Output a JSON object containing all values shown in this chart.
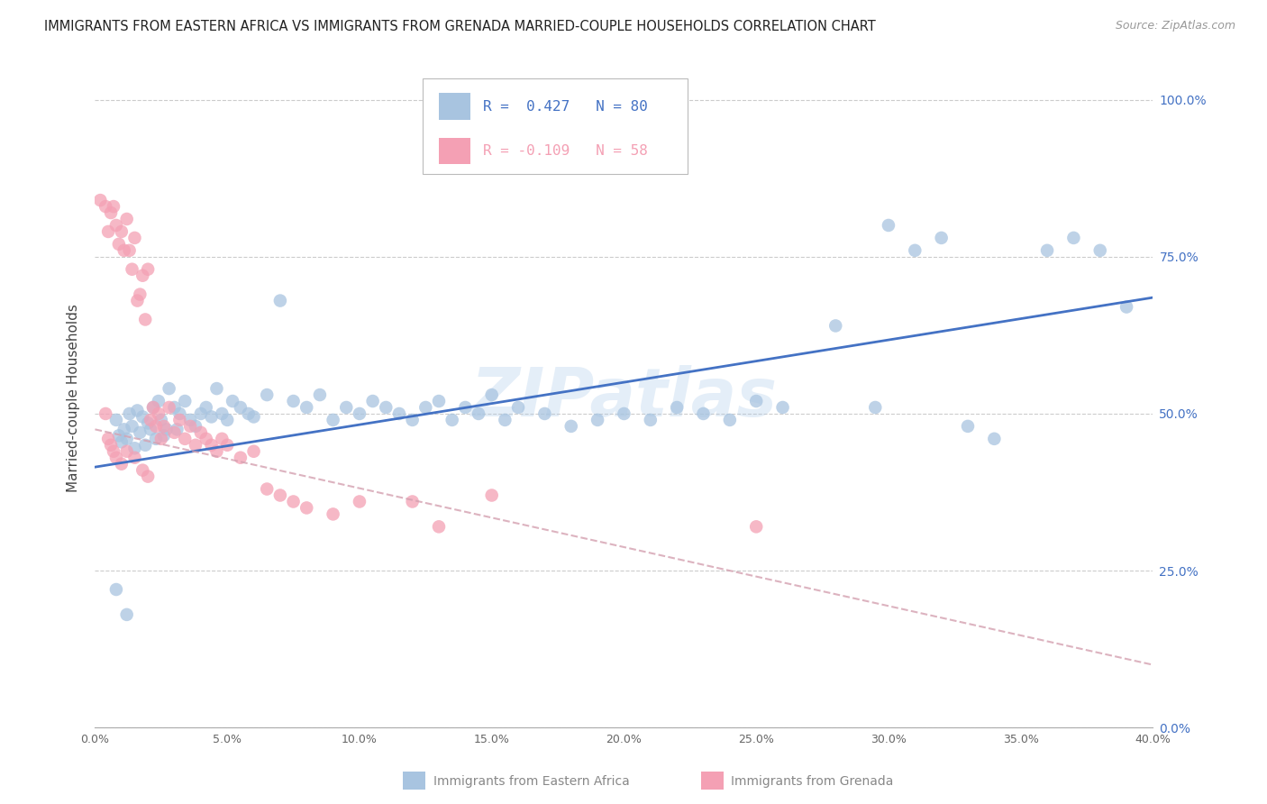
{
  "title": "IMMIGRANTS FROM EASTERN AFRICA VS IMMIGRANTS FROM GRENADA MARRIED-COUPLE HOUSEHOLDS CORRELATION CHART",
  "source": "Source: ZipAtlas.com",
  "xlabel_blue": "Immigrants from Eastern Africa",
  "xlabel_pink": "Immigrants from Grenada",
  "ylabel": "Married-couple Households",
  "blue_R": 0.427,
  "blue_N": 80,
  "pink_R": -0.109,
  "pink_N": 58,
  "blue_color": "#a8c4e0",
  "pink_color": "#f4a0b4",
  "blue_line_color": "#4472c4",
  "pink_line_color": "#d4a0b0",
  "right_axis_color": "#4472c4",
  "watermark": "ZIPatlas",
  "xmin": 0.0,
  "xmax": 0.4,
  "ymin": 0.0,
  "ymax": 1.05,
  "yticks": [
    0.0,
    0.25,
    0.5,
    0.75,
    1.0
  ],
  "xticks": [
    0.0,
    0.05,
    0.1,
    0.15,
    0.2,
    0.25,
    0.3,
    0.35,
    0.4
  ],
  "blue_line_x0": 0.0,
  "blue_line_y0": 0.415,
  "blue_line_x1": 0.4,
  "blue_line_y1": 0.685,
  "pink_line_x0": 0.0,
  "pink_line_y0": 0.475,
  "pink_line_x1": 0.4,
  "pink_line_y1": 0.1,
  "blue_scatter_x": [
    0.008,
    0.009,
    0.01,
    0.011,
    0.012,
    0.013,
    0.014,
    0.015,
    0.016,
    0.017,
    0.018,
    0.019,
    0.02,
    0.021,
    0.022,
    0.023,
    0.024,
    0.025,
    0.026,
    0.027,
    0.028,
    0.03,
    0.031,
    0.032,
    0.034,
    0.036,
    0.038,
    0.04,
    0.042,
    0.044,
    0.046,
    0.048,
    0.05,
    0.052,
    0.055,
    0.058,
    0.06,
    0.065,
    0.07,
    0.075,
    0.08,
    0.085,
    0.09,
    0.095,
    0.1,
    0.105,
    0.11,
    0.115,
    0.12,
    0.125,
    0.13,
    0.135,
    0.14,
    0.145,
    0.15,
    0.155,
    0.16,
    0.17,
    0.18,
    0.19,
    0.2,
    0.21,
    0.22,
    0.23,
    0.24,
    0.25,
    0.26,
    0.28,
    0.295,
    0.3,
    0.31,
    0.32,
    0.33,
    0.34,
    0.36,
    0.37,
    0.38,
    0.39,
    0.008,
    0.012
  ],
  "blue_scatter_y": [
    0.49,
    0.465,
    0.455,
    0.475,
    0.46,
    0.5,
    0.48,
    0.445,
    0.505,
    0.47,
    0.495,
    0.45,
    0.485,
    0.475,
    0.51,
    0.46,
    0.52,
    0.49,
    0.465,
    0.475,
    0.54,
    0.51,
    0.475,
    0.5,
    0.52,
    0.49,
    0.48,
    0.5,
    0.51,
    0.495,
    0.54,
    0.5,
    0.49,
    0.52,
    0.51,
    0.5,
    0.495,
    0.53,
    0.68,
    0.52,
    0.51,
    0.53,
    0.49,
    0.51,
    0.5,
    0.52,
    0.51,
    0.5,
    0.49,
    0.51,
    0.52,
    0.49,
    0.51,
    0.5,
    0.53,
    0.49,
    0.51,
    0.5,
    0.48,
    0.49,
    0.5,
    0.49,
    0.51,
    0.5,
    0.49,
    0.52,
    0.51,
    0.64,
    0.51,
    0.8,
    0.76,
    0.78,
    0.48,
    0.46,
    0.76,
    0.78,
    0.76,
    0.67,
    0.22,
    0.18
  ],
  "pink_scatter_x": [
    0.002,
    0.004,
    0.005,
    0.006,
    0.007,
    0.008,
    0.009,
    0.01,
    0.011,
    0.012,
    0.013,
    0.014,
    0.015,
    0.016,
    0.017,
    0.018,
    0.019,
    0.02,
    0.021,
    0.022,
    0.023,
    0.024,
    0.025,
    0.026,
    0.028,
    0.03,
    0.032,
    0.034,
    0.036,
    0.038,
    0.04,
    0.042,
    0.044,
    0.046,
    0.048,
    0.05,
    0.055,
    0.06,
    0.065,
    0.07,
    0.075,
    0.08,
    0.09,
    0.1,
    0.12,
    0.13,
    0.15,
    0.004,
    0.005,
    0.006,
    0.007,
    0.008,
    0.01,
    0.012,
    0.015,
    0.018,
    0.02,
    0.25
  ],
  "pink_scatter_y": [
    0.84,
    0.83,
    0.79,
    0.82,
    0.83,
    0.8,
    0.77,
    0.79,
    0.76,
    0.81,
    0.76,
    0.73,
    0.78,
    0.68,
    0.69,
    0.72,
    0.65,
    0.73,
    0.49,
    0.51,
    0.48,
    0.5,
    0.46,
    0.48,
    0.51,
    0.47,
    0.49,
    0.46,
    0.48,
    0.45,
    0.47,
    0.46,
    0.45,
    0.44,
    0.46,
    0.45,
    0.43,
    0.44,
    0.38,
    0.37,
    0.36,
    0.35,
    0.34,
    0.36,
    0.36,
    0.32,
    0.37,
    0.5,
    0.46,
    0.45,
    0.44,
    0.43,
    0.42,
    0.44,
    0.43,
    0.41,
    0.4,
    0.32
  ]
}
